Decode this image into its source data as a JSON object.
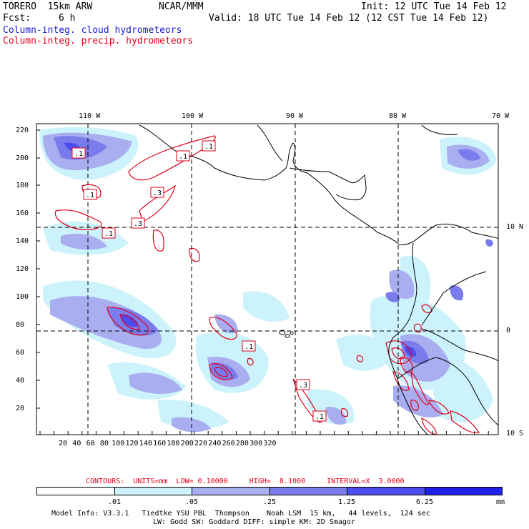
{
  "header": {
    "model": "TORERO  15km ARW",
    "center": "NCAR/MMM",
    "init": "Init: 12 UTC Tue 14 Feb 12",
    "fcst_label": "Fcst:",
    "fcst_value": "6 h",
    "valid": "Valid: 18 UTC Tue 14 Feb 12 (12 CST Tue 14 Feb 12)",
    "field1": "Column-integ. cloud hydrometeors",
    "field2": "Column-integ. precip. hydrometeors"
  },
  "map": {
    "lon_labels": [
      "110 W",
      "100 W",
      "90 W",
      "80 W",
      "70 W"
    ],
    "lat_labels": [
      "10 N",
      "0",
      "10 S"
    ],
    "y_ticks": [
      "220",
      "200",
      "180",
      "160",
      "140",
      "120",
      "100",
      "80",
      "60",
      "40",
      "20"
    ],
    "x_ticks": [
      "20",
      "40",
      "60",
      "80",
      "100",
      "120",
      "140",
      "160",
      "180",
      "200",
      "220",
      "240",
      "260",
      "280",
      "300",
      "320"
    ],
    "contour_labels": [
      ".1",
      ".1",
      ".1",
      ".3",
      ".1",
      ".3",
      ".1",
      ".1",
      ".3",
      ".1"
    ]
  },
  "legend": {
    "contours_text": "CONTOURS:  UNITS=mm  LOW= 0.10000     HIGH=  8.1000     INTERVAL=X  3.0000",
    "scale_labels": [
      ".01",
      ".05",
      ".25",
      "1.25",
      "6.25"
    ],
    "scale_colors": [
      "#ffffff",
      "#ccf3fb",
      "#a8aef0",
      "#7b7cec",
      "#4d4dee",
      "#2020e8"
    ],
    "unit": "mm"
  },
  "footer": {
    "line1": "Model Info: V3.3.1   Tiedtke YSU PBL  Thompson    Noah LSM  15 km,   44 levels,  124 sec",
    "line2": "LW: Godd SW: Goddard DIFF: simple KM: 2D Smagor"
  },
  "colors": {
    "cloud_text": "#1a1ad6",
    "precip_text": "#e0001a",
    "coast": "#000000"
  }
}
